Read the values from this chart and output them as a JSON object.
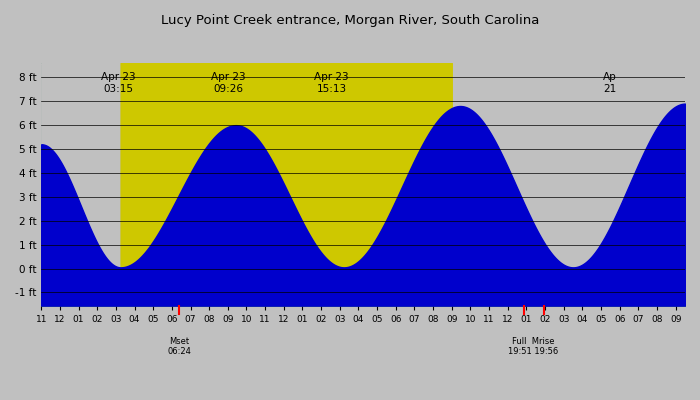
{
  "title": "Lucy Point Creek entrance, Morgan River, South Carolina",
  "bg_night": "#C0C0C0",
  "bg_day": "#CEC800",
  "tide_blue": "#0000CC",
  "tide_green": "#1A7A45",
  "x_start": -1.0,
  "x_end": 33.5,
  "ylim_min": -1.55,
  "ylim_max": 8.6,
  "yticks": [
    -1,
    0,
    1,
    2,
    3,
    4,
    5,
    6,
    7,
    8
  ],
  "ytick_labels": [
    "-1 ft",
    "0 ft",
    "1 ft",
    "2 ft",
    "3 ft",
    "4 ft",
    "5 ft",
    "6 ft",
    "7 ft",
    "8 ft"
  ],
  "daytime_start": 3.25,
  "daytime_end": 21.0,
  "tide_points": [
    [
      -1.0,
      5.2
    ],
    [
      3.25,
      0.05
    ],
    [
      9.433,
      6.0
    ],
    [
      15.217,
      0.05
    ],
    [
      21.45,
      6.8
    ],
    [
      27.5,
      0.05
    ],
    [
      33.5,
      6.9
    ]
  ],
  "top_events": [
    {
      "label": "Apr 23\n03:15",
      "x": 3.25
    },
    {
      "label": "Apr 23\n09:26",
      "x": 9.433
    },
    {
      "label": "Apr 23\n15:13",
      "x": 15.217
    },
    {
      "label": "Ap\n21",
      "x": 30.8
    }
  ],
  "bottom_events": [
    {
      "label": "Mset\n06:24",
      "x": 6.4
    },
    {
      "label": "Full  Mrise\n19:51 19:56",
      "x": 25.35
    }
  ],
  "red_ticks": [
    6.4,
    24.85,
    25.93
  ],
  "xtick_pos": [
    -1,
    0,
    1,
    2,
    3,
    4,
    5,
    6,
    7,
    8,
    9,
    10,
    11,
    12,
    13,
    14,
    15,
    16,
    17,
    18,
    19,
    20,
    21,
    22,
    23,
    24,
    25,
    26,
    27,
    28,
    29,
    30,
    31,
    32,
    33
  ],
  "xtick_labels": [
    "11",
    "12",
    "01",
    "02",
    "03",
    "04",
    "05",
    "06",
    "07",
    "08",
    "09",
    "10",
    "11",
    "12",
    "01",
    "02",
    "03",
    "04",
    "05",
    "06",
    "07",
    "08",
    "09",
    "10",
    "11",
    "12",
    "01",
    "02",
    "03",
    "04",
    "05",
    "06",
    "07",
    "08",
    "09"
  ]
}
